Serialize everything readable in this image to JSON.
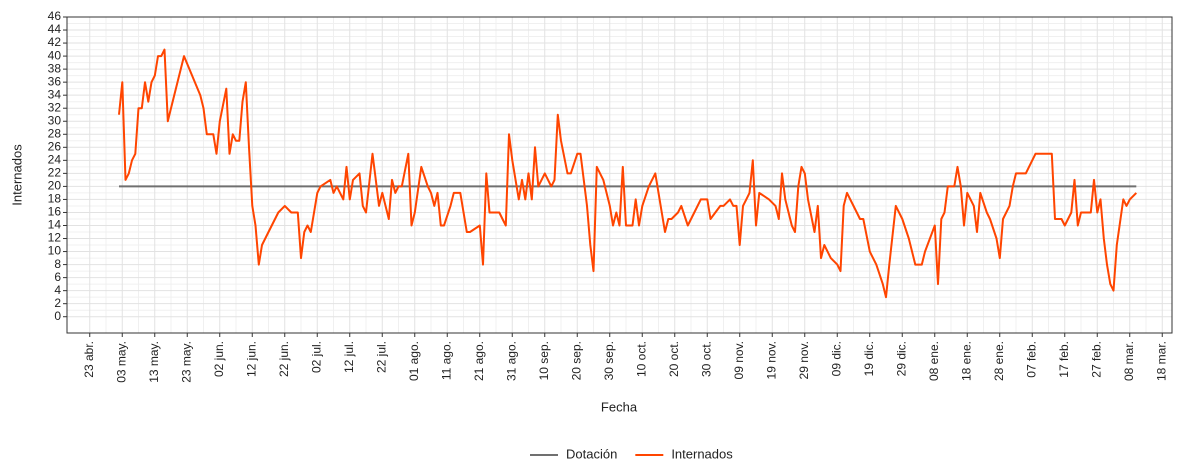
{
  "chart_data": {
    "type": "line",
    "xlabel": "Fecha",
    "ylabel": "Internados",
    "xlim": [
      -7,
      333
    ],
    "ylim": [
      -2.5,
      46
    ],
    "xticks": [
      {
        "value": 0,
        "label": "23 abr."
      },
      {
        "value": 10,
        "label": "03 may."
      },
      {
        "value": 20,
        "label": "13 may."
      },
      {
        "value": 30,
        "label": "23 may."
      },
      {
        "value": 40,
        "label": "02 jun."
      },
      {
        "value": 50,
        "label": "12 jun."
      },
      {
        "value": 60,
        "label": "22 jun."
      },
      {
        "value": 70,
        "label": "02 jul."
      },
      {
        "value": 80,
        "label": "12 jul."
      },
      {
        "value": 90,
        "label": "22 jul."
      },
      {
        "value": 100,
        "label": "01 ago."
      },
      {
        "value": 110,
        "label": "11 ago."
      },
      {
        "value": 120,
        "label": "21 ago."
      },
      {
        "value": 130,
        "label": "31 ago."
      },
      {
        "value": 140,
        "label": "10 sep."
      },
      {
        "value": 150,
        "label": "20 sep."
      },
      {
        "value": 160,
        "label": "30 sep."
      },
      {
        "value": 170,
        "label": "10 oct."
      },
      {
        "value": 180,
        "label": "20 oct."
      },
      {
        "value": 190,
        "label": "30 oct."
      },
      {
        "value": 200,
        "label": "09 nov."
      },
      {
        "value": 210,
        "label": "19 nov."
      },
      {
        "value": 220,
        "label": "29 nov."
      },
      {
        "value": 230,
        "label": "09 dic."
      },
      {
        "value": 240,
        "label": "19 dic."
      },
      {
        "value": 250,
        "label": "29 dic."
      },
      {
        "value": 260,
        "label": "08 ene."
      },
      {
        "value": 270,
        "label": "18 ene."
      },
      {
        "value": 280,
        "label": "28 ene."
      },
      {
        "value": 290,
        "label": "07 feb."
      },
      {
        "value": 300,
        "label": "17 feb."
      },
      {
        "value": 310,
        "label": "27 feb."
      },
      {
        "value": 320,
        "label": "08 mar."
      },
      {
        "value": 330,
        "label": "18 mar."
      }
    ],
    "yticks": [
      0,
      2,
      4,
      6,
      8,
      10,
      12,
      14,
      16,
      18,
      20,
      22,
      24,
      26,
      28,
      30,
      32,
      34,
      36,
      38,
      40,
      42,
      44,
      46
    ],
    "grid": true,
    "legend": "bottom",
    "series": [
      {
        "name": "Dotación",
        "color": "#707070",
        "x": [
          9,
          322
        ],
        "values": [
          20,
          20
        ]
      },
      {
        "name": "Internados",
        "color": "#ff4500",
        "x": [
          9,
          10,
          11,
          12,
          13,
          14,
          15,
          16,
          17,
          18,
          19,
          20,
          21,
          22,
          23,
          24,
          25,
          29,
          34,
          35,
          36,
          38,
          39,
          40,
          42,
          43,
          44,
          45,
          46,
          47,
          48,
          49,
          50,
          51,
          52,
          53,
          55,
          58,
          60,
          62,
          64,
          65,
          66,
          67,
          68,
          70,
          71,
          74,
          75,
          76,
          78,
          79,
          80,
          81,
          83,
          84,
          85,
          87,
          88,
          89,
          90,
          92,
          93,
          94,
          95,
          96,
          98,
          99,
          100,
          102,
          104,
          105,
          106,
          107,
          108,
          109,
          111,
          112,
          114,
          116,
          117,
          120,
          121,
          122,
          123,
          126,
          127,
          128,
          129,
          130,
          132,
          133,
          134,
          135,
          136,
          137,
          138,
          140,
          142,
          143,
          144,
          145,
          147,
          148,
          150,
          151,
          153,
          154,
          155,
          156,
          158,
          160,
          161,
          162,
          163,
          164,
          165,
          167,
          168,
          169,
          170,
          172,
          174,
          177,
          178,
          179,
          181,
          182,
          184,
          186,
          188,
          190,
          191,
          194,
          195,
          197,
          198,
          199,
          200,
          201,
          202,
          203,
          204,
          205,
          206,
          209,
          211,
          212,
          213,
          214,
          216,
          217,
          218,
          219,
          220,
          221,
          223,
          224,
          225,
          226,
          228,
          230,
          231,
          232,
          233,
          236,
          237,
          238,
          240,
          242,
          244,
          245,
          246,
          248,
          250,
          252,
          254,
          256,
          257,
          260,
          261,
          262,
          263,
          264,
          266,
          267,
          268,
          269,
          270,
          272,
          273,
          274,
          276,
          277,
          279,
          280,
          281,
          283,
          284,
          285,
          288,
          289,
          291,
          294,
          296,
          297,
          299,
          300,
          302,
          303,
          304,
          305,
          307,
          308,
          309,
          310,
          311,
          312,
          313,
          314,
          315,
          316,
          318,
          319,
          320,
          322
        ],
        "values": [
          31,
          36,
          21,
          22,
          24,
          25,
          32,
          32,
          36,
          33,
          36,
          37,
          40,
          40,
          41,
          30,
          32,
          40,
          34,
          32,
          28,
          28,
          25,
          30,
          35,
          25,
          28,
          27,
          27,
          33,
          36,
          26,
          17,
          14,
          8,
          11,
          13,
          16,
          17,
          16,
          16,
          9,
          13,
          14,
          13,
          19,
          20,
          21,
          19,
          20,
          18,
          23,
          18,
          21,
          22,
          17,
          16,
          25,
          21,
          17,
          19,
          15,
          21,
          19,
          20,
          20,
          25,
          14,
          16,
          23,
          20,
          19,
          17,
          19,
          14,
          14,
          17,
          19,
          19,
          13,
          13,
          14,
          8,
          22,
          16,
          16,
          15,
          14,
          28,
          24,
          18,
          21,
          18,
          22,
          18,
          26,
          20,
          22,
          20,
          21,
          31,
          27,
          22,
          22,
          25,
          25,
          17,
          11,
          7,
          23,
          21,
          17,
          14,
          16,
          14,
          23,
          14,
          14,
          18,
          14,
          17,
          20,
          22,
          13,
          15,
          15,
          16,
          17,
          14,
          16,
          18,
          18,
          15,
          17,
          17,
          18,
          17,
          17,
          11,
          17,
          18,
          19,
          24,
          14,
          19,
          18,
          17,
          15,
          22,
          18,
          14,
          13,
          20,
          23,
          22,
          18,
          13,
          17,
          9,
          11,
          9,
          8,
          7,
          17,
          19,
          16,
          15,
          15,
          10,
          8,
          5,
          3,
          8,
          17,
          15,
          12,
          8,
          8,
          10,
          14,
          5,
          15,
          16,
          20,
          20,
          23,
          20,
          14,
          19,
          17,
          13,
          19,
          16,
          15,
          12,
          9,
          15,
          17,
          20,
          22,
          22,
          23,
          25,
          25,
          25,
          15,
          15,
          14,
          16,
          21,
          14,
          16,
          16,
          16,
          21,
          16,
          18,
          12,
          8,
          5,
          4,
          11,
          18,
          17,
          18,
          19
        ]
      }
    ]
  }
}
